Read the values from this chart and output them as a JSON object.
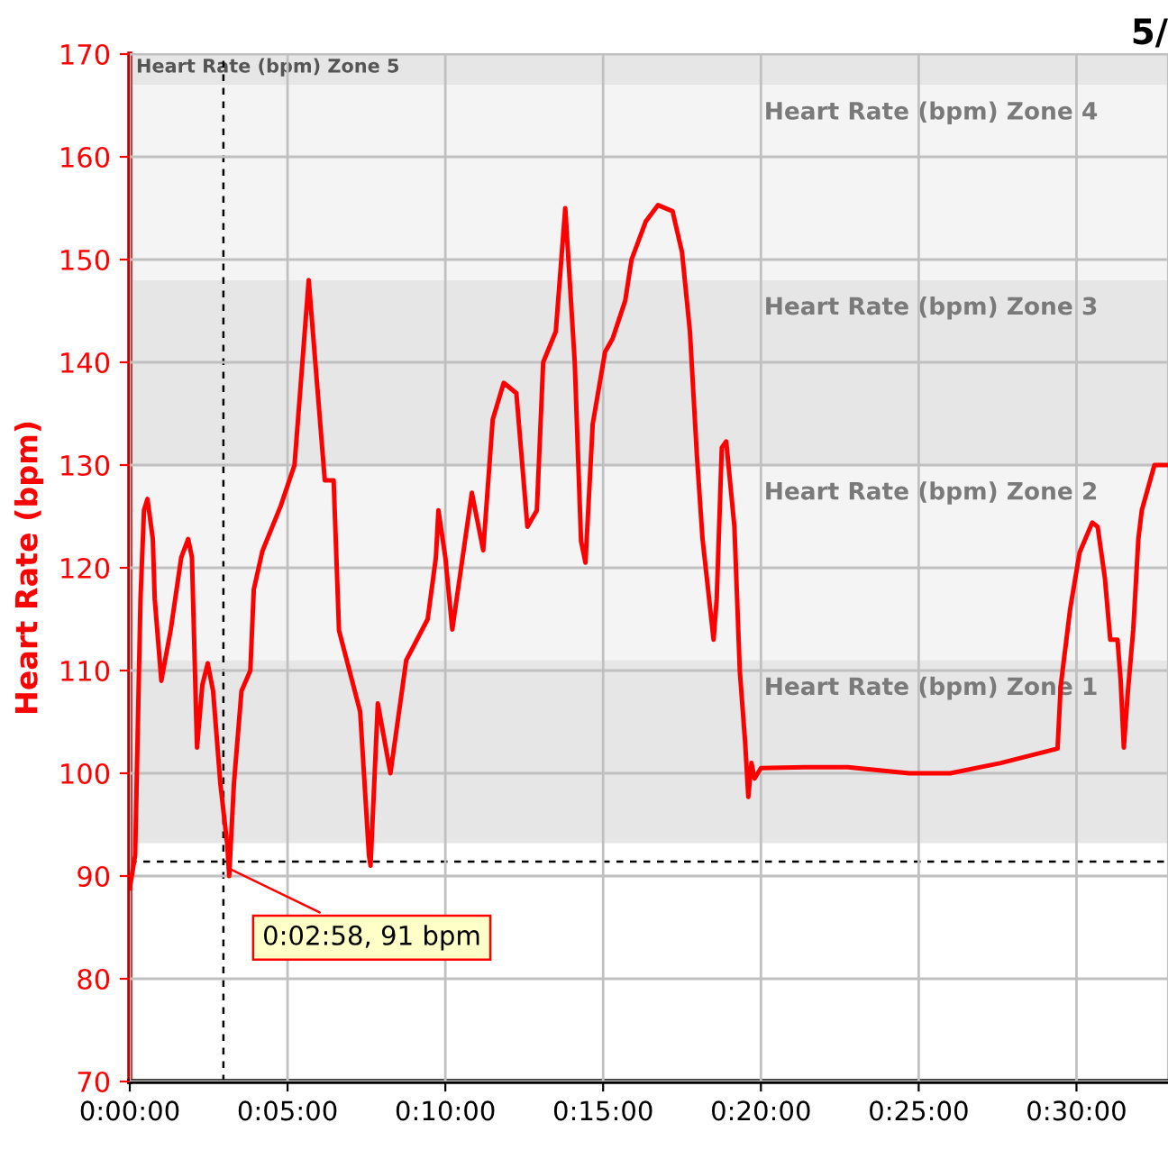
{
  "chart_data": {
    "type": "line",
    "title": "5/",
    "ylabel": "Heart Rate (bpm)",
    "x": [
      0,
      0.17,
      0.34,
      0.45,
      0.56,
      0.73,
      0.79,
      1.0,
      1.3,
      1.63,
      1.85,
      1.97,
      2.13,
      2.3,
      2.47,
      2.64,
      2.87,
      3.09,
      3.15,
      3.3,
      3.54,
      3.82,
      3.93,
      4.2,
      4.78,
      5.22,
      5.67,
      6.18,
      6.46,
      6.63,
      7.3,
      7.58,
      7.63,
      7.86,
      8.26,
      8.76,
      9.44,
      9.7,
      9.78,
      10.0,
      10.22,
      10.84,
      11.2,
      11.5,
      11.85,
      12.25,
      12.6,
      12.9,
      13.1,
      13.5,
      13.8,
      14.1,
      14.3,
      14.44,
      14.67,
      15.06,
      15.3,
      15.7,
      15.9,
      16.35,
      16.74,
      17.2,
      17.5,
      17.75,
      17.97,
      18.15,
      18.5,
      18.6,
      18.76,
      18.9,
      19.16,
      19.33,
      19.5,
      19.6,
      19.7,
      19.8,
      20.0,
      21.4,
      22.75,
      24.7,
      26.0,
      27.6,
      29.4,
      29.5,
      29.8,
      30.1,
      30.5,
      30.67,
      30.9,
      31.07,
      31.3,
      31.4,
      31.5,
      31.63,
      31.8,
      31.96,
      32.07,
      32.47,
      32.9
    ],
    "series": [
      {
        "color": "#ff0000",
        "values": [
          88.8,
          92,
          117,
          125.6,
          126.7,
          122.8,
          117,
          109,
          114,
          121,
          122.8,
          121,
          102.5,
          108.6,
          110.7,
          108,
          99,
          93,
          90,
          99,
          108,
          110,
          117.9,
          121.6,
          126,
          130,
          148,
          128.5,
          128.5,
          113.9,
          106,
          92,
          91,
          106.8,
          100,
          111,
          115,
          121,
          125.6,
          121,
          114,
          127.3,
          121.7,
          134.4,
          138,
          137,
          124,
          125.6,
          140,
          143,
          155,
          140,
          122.6,
          120.5,
          134,
          141,
          142.3,
          146,
          150,
          153.7,
          155.3,
          154.7,
          150.7,
          143,
          131,
          122.8,
          113,
          117,
          131.7,
          132.3,
          124,
          110,
          103,
          97.7,
          101,
          99.5,
          100.5,
          100.6,
          100.6,
          100,
          100,
          101,
          102.4,
          108.5,
          116,
          121.5,
          124.4,
          124,
          119,
          113,
          113,
          109,
          102.5,
          108,
          114,
          122.8,
          125.6,
          130,
          130
        ]
      }
    ],
    "xlim": [
      0,
      32.9
    ],
    "xticks": [
      {
        "value": 0,
        "label": "0:00:00"
      },
      {
        "value": 5,
        "label": "0:05:00"
      },
      {
        "value": 10,
        "label": "0:10:00"
      },
      {
        "value": 15,
        "label": "0:15:00"
      },
      {
        "value": 20,
        "label": "0:20:00"
      },
      {
        "value": 25,
        "label": "0:25:00"
      },
      {
        "value": 30,
        "label": "0:30:00"
      }
    ],
    "ylim": [
      70,
      170
    ],
    "yticks": [
      70,
      80,
      90,
      100,
      110,
      120,
      130,
      140,
      150,
      160,
      170
    ],
    "grid": true,
    "line_style": "solid",
    "bands": [
      {
        "axis": "y",
        "from": 93.2,
        "to": 111,
        "label": "Heart Rate (bpm) Zone 1",
        "color": "#e6e6e6"
      },
      {
        "axis": "y",
        "from": 111,
        "to": 130,
        "label": "Heart Rate (bpm) Zone 2",
        "color": "#f4f4f4"
      },
      {
        "axis": "y",
        "from": 130,
        "to": 148,
        "label": "Heart Rate (bpm) Zone 3",
        "color": "#e6e6e6"
      },
      {
        "axis": "y",
        "from": 148,
        "to": 167,
        "label": "Heart Rate (bpm) Zone 4",
        "color": "#f4f4f4"
      },
      {
        "axis": "y",
        "from": 167,
        "to": 170,
        "label": "Heart Rate (bpm) Zone 5",
        "color": "#e6e6e6"
      }
    ],
    "ref_lines": [
      {
        "axis": "x",
        "value": 2.967,
        "color": "#000000",
        "line_style": "dashed"
      },
      {
        "axis": "y",
        "value": 91.4,
        "color": "#000000",
        "line_style": "dashed"
      }
    ],
    "annotations": [
      {
        "text": "0:02:58, 91 bpm",
        "x": 2.967,
        "y": 91
      }
    ]
  }
}
